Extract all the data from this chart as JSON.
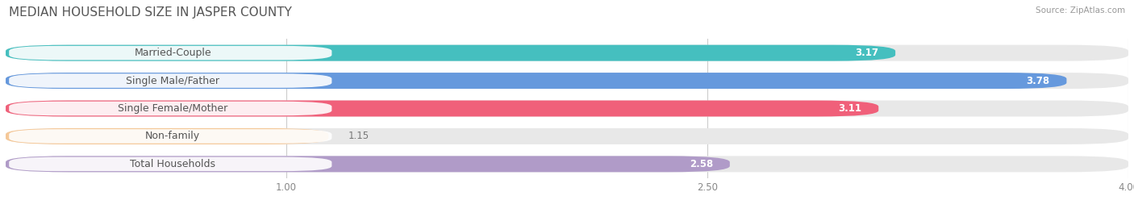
{
  "title": "MEDIAN HOUSEHOLD SIZE IN JASPER COUNTY",
  "source": "Source: ZipAtlas.com",
  "categories": [
    "Married-Couple",
    "Single Male/Father",
    "Single Female/Mother",
    "Non-family",
    "Total Households"
  ],
  "values": [
    3.17,
    3.78,
    3.11,
    1.15,
    2.58
  ],
  "bar_colors": [
    "#45BFBF",
    "#6699DD",
    "#F0607A",
    "#F5C898",
    "#B09BC8"
  ],
  "bar_bg_color": "#E8E8E8",
  "xlim": [
    0.0,
    4.0
  ],
  "xticks": [
    1.0,
    2.5,
    4.0
  ],
  "background_color": "#FFFFFF",
  "title_fontsize": 11,
  "label_fontsize": 9,
  "value_fontsize": 8.5
}
